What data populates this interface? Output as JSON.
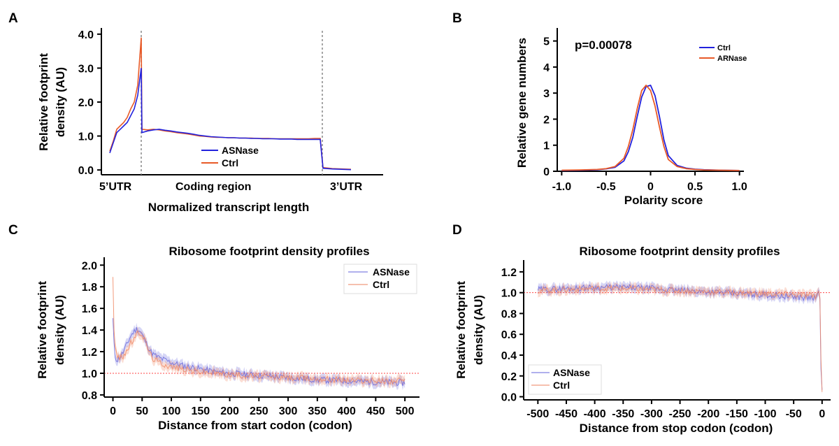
{
  "chart_data": [
    {
      "panel": "A",
      "type": "line",
      "ylabel_lines": [
        "Relative footprint",
        "density (AU)"
      ],
      "xlabel": "Normalized transcript length",
      "region_labels": [
        "5’UTR",
        "Coding region",
        "3’UTR"
      ],
      "y_ticks": [
        "0.0",
        "1.0",
        "2.0",
        "3.0",
        "4.0"
      ],
      "ylim": [
        -0.1,
        4.1
      ],
      "legend_placement": "bottom-center",
      "series": [
        {
          "name": "ASNase",
          "color": "#2222dd",
          "values": [
            0.5,
            0.8,
            1.1,
            1.2,
            1.3,
            1.4,
            1.6,
            1.8,
            2.2,
            3.0,
            1.1,
            1.15,
            1.18,
            1.2,
            1.17,
            1.15,
            1.12,
            1.1,
            1.08,
            1.05,
            1.02,
            1.0,
            0.98,
            0.97,
            0.96,
            0.95,
            0.95,
            0.94,
            0.94,
            0.93,
            0.93,
            0.92,
            0.92,
            0.92,
            0.91,
            0.91,
            0.91,
            0.9,
            0.9,
            0.9,
            0.9,
            0.9,
            0.05,
            0.03,
            0.02,
            0.01
          ]
        },
        {
          "name": "Ctrl",
          "color": "#e85a28",
          "values": [
            0.55,
            0.85,
            1.2,
            1.3,
            1.4,
            1.55,
            1.8,
            2.0,
            2.5,
            3.9,
            1.2,
            1.18,
            1.2,
            1.18,
            1.15,
            1.13,
            1.1,
            1.08,
            1.06,
            1.03,
            1.0,
            0.99,
            0.97,
            0.96,
            0.96,
            0.95,
            0.95,
            0.94,
            0.94,
            0.94,
            0.93,
            0.93,
            0.93,
            0.92,
            0.92,
            0.92,
            0.92,
            0.92,
            0.92,
            0.92,
            0.93,
            0.93,
            0.07,
            0.04,
            0.03,
            0.02
          ]
        }
      ]
    },
    {
      "panel": "B",
      "type": "line",
      "xlabel": "Polarity score",
      "ylabel": "Relative gene numbers",
      "annotation": "p=0.00078",
      "x_ticks": [
        "-1.0",
        "-0.5",
        "0",
        "0.5",
        "1.0"
      ],
      "y_ticks": [
        "0",
        "1",
        "2",
        "3",
        "4",
        "5"
      ],
      "xlim": [
        -1.05,
        1.05
      ],
      "ylim": [
        0,
        5.5
      ],
      "legend_placement": "top-right",
      "x": [
        -1.0,
        -0.8,
        -0.6,
        -0.5,
        -0.4,
        -0.3,
        -0.25,
        -0.2,
        -0.15,
        -0.1,
        -0.05,
        0.0,
        0.05,
        0.1,
        0.15,
        0.2,
        0.3,
        0.4,
        0.5,
        0.6,
        0.8,
        1.0
      ],
      "series": [
        {
          "name": "Ctrl",
          "color": "#2222dd",
          "values": [
            0.03,
            0.04,
            0.06,
            0.09,
            0.15,
            0.4,
            0.75,
            1.3,
            2.1,
            2.85,
            3.25,
            3.3,
            2.9,
            2.1,
            1.2,
            0.6,
            0.22,
            0.12,
            0.08,
            0.06,
            0.04,
            0.03
          ]
        },
        {
          "name": "ARNase",
          "color": "#e85a28",
          "values": [
            0.04,
            0.05,
            0.07,
            0.1,
            0.18,
            0.5,
            0.95,
            1.6,
            2.4,
            3.1,
            3.3,
            3.1,
            2.5,
            1.7,
            0.95,
            0.45,
            0.18,
            0.1,
            0.07,
            0.05,
            0.04,
            0.03
          ]
        }
      ]
    },
    {
      "panel": "C",
      "type": "line",
      "title": "Ribosome footprint density profiles",
      "ylabel_lines": [
        "Relative footprint",
        "density (AU)"
      ],
      "xlabel": "Distance from start codon (codon)",
      "x_ticks": [
        "0",
        "50",
        "100",
        "150",
        "200",
        "250",
        "300",
        "350",
        "400",
        "450",
        "500"
      ],
      "y_ticks": [
        "0.8",
        "1.0",
        "1.2",
        "1.4",
        "1.6",
        "1.8",
        "2.0"
      ],
      "xlim": [
        -15,
        525
      ],
      "ylim": [
        0.78,
        2.06
      ],
      "reference_line": 1.0,
      "legend_placement": "top-right",
      "x": [
        0,
        2,
        4,
        8,
        12,
        16,
        20,
        25,
        30,
        35,
        40,
        45,
        50,
        55,
        60,
        65,
        70,
        80,
        90,
        100,
        120,
        140,
        160,
        180,
        200,
        250,
        300,
        350,
        400,
        450,
        500
      ],
      "series": [
        {
          "name": "ASNase",
          "color": "#6b6bdd",
          "values": [
            1.5,
            1.25,
            1.15,
            1.12,
            1.15,
            1.18,
            1.22,
            1.28,
            1.34,
            1.38,
            1.41,
            1.4,
            1.36,
            1.3,
            1.25,
            1.2,
            1.17,
            1.14,
            1.12,
            1.1,
            1.07,
            1.05,
            1.03,
            1.01,
            1.0,
            0.98,
            0.96,
            0.94,
            0.93,
            0.92,
            0.91
          ]
        },
        {
          "name": "Ctrl",
          "color": "#f08a66",
          "values": [
            1.9,
            1.4,
            1.22,
            1.15,
            1.14,
            1.15,
            1.18,
            1.22,
            1.27,
            1.31,
            1.35,
            1.38,
            1.36,
            1.3,
            1.23,
            1.17,
            1.13,
            1.1,
            1.08,
            1.06,
            1.04,
            1.02,
            1.01,
            1.0,
            0.99,
            0.97,
            0.96,
            0.95,
            0.94,
            0.93,
            0.93
          ]
        }
      ]
    },
    {
      "panel": "D",
      "type": "line",
      "title": "Ribosome footprint density profiles",
      "ylabel_lines": [
        "Relative footprint",
        "density (AU)"
      ],
      "xlabel": "Distance from stop codon (codon)",
      "x_ticks": [
        "-500",
        "-450",
        "-400",
        "-350",
        "-300",
        "-250",
        "-200",
        "-150",
        "-100",
        "-50",
        "0"
      ],
      "y_ticks": [
        "0.0",
        "0.2",
        "0.4",
        "0.6",
        "0.8",
        "1.0",
        "1.2"
      ],
      "xlim": [
        -525,
        15
      ],
      "ylim": [
        -0.03,
        1.3
      ],
      "reference_line": 1.0,
      "legend_placement": "bottom-left",
      "x": [
        -500,
        -450,
        -400,
        -350,
        -300,
        -250,
        -200,
        -150,
        -100,
        -50,
        -20,
        -10,
        -5,
        -3,
        -2,
        0
      ],
      "series": [
        {
          "name": "ASNase",
          "color": "#6b6bdd",
          "values": [
            1.03,
            1.04,
            1.05,
            1.05,
            1.04,
            1.02,
            1.01,
            0.99,
            0.98,
            0.96,
            0.95,
            0.95,
            1.0,
            0.9,
            0.3,
            0.06
          ]
        },
        {
          "name": "Ctrl",
          "color": "#f08a66",
          "values": [
            1.02,
            1.03,
            1.04,
            1.04,
            1.03,
            1.02,
            1.01,
            1.0,
            0.99,
            0.98,
            0.97,
            0.97,
            1.02,
            0.95,
            0.35,
            0.07
          ]
        }
      ]
    }
  ],
  "panels": {
    "A": "A",
    "B": "B",
    "C": "C",
    "D": "D"
  }
}
